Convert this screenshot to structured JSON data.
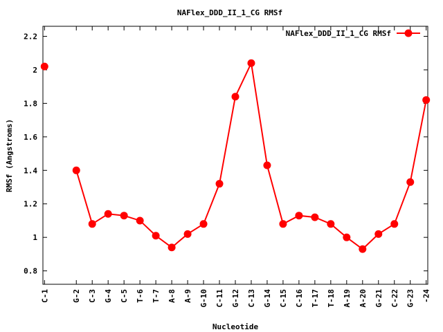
{
  "chart_data": {
    "type": "line",
    "title": "NAFlex_DDD_II_1_CG RMSf",
    "xlabel": "Nucleotide",
    "ylabel": "RMSf (Angstroms)",
    "ylim": [
      0.72,
      2.26
    ],
    "yticks": [
      0.8,
      1,
      1.2,
      1.4,
      1.6,
      1.8,
      2,
      2.2
    ],
    "ytick_labels": [
      "0.8",
      "1",
      "1.2",
      "1.4",
      "1.6",
      "1.8",
      "2",
      "2.2"
    ],
    "xlim": [
      0.9,
      24.1
    ],
    "grid": false,
    "legend_position": "top-right",
    "categories": [
      "C-1",
      "G-2",
      "C-3",
      "G-4",
      "C-5",
      "T-6",
      "T-7",
      "A-8",
      "A-9",
      "G-10",
      "C-11",
      "G-12",
      "C-13",
      "G-14",
      "C-15",
      "C-16",
      "T-17",
      "T-18",
      "A-19",
      "A-20",
      "G-21",
      "C-22",
      "G-23",
      "-24"
    ],
    "x": [
      1,
      3,
      4,
      5,
      6,
      7,
      8,
      9,
      10,
      11,
      12,
      13,
      14,
      15,
      16,
      17,
      18,
      19,
      20,
      21,
      22,
      23,
      24,
      25
    ],
    "series": [
      {
        "name": "NAFlex_DDD_II_1_CG RMSf",
        "color": "#ff0000",
        "segments": [
          [
            [
              1,
              2.02
            ]
          ],
          [
            [
              3,
              1.4
            ],
            [
              4,
              1.08
            ],
            [
              5,
              1.14
            ],
            [
              6,
              1.13
            ],
            [
              7,
              1.1
            ],
            [
              8,
              1.01
            ],
            [
              9,
              0.94
            ],
            [
              10,
              1.02
            ],
            [
              11,
              1.08
            ],
            [
              12,
              1.32
            ],
            [
              13,
              1.84
            ],
            [
              14,
              2.04
            ],
            [
              15,
              1.43
            ],
            [
              16,
              1.08
            ],
            [
              17,
              1.13
            ],
            [
              18,
              1.12
            ],
            [
              19,
              1.08
            ],
            [
              20,
              1.0
            ],
            [
              21,
              0.93
            ],
            [
              22,
              1.02
            ],
            [
              23,
              1.08
            ],
            [
              24,
              1.33
            ],
            [
              25,
              1.82
            ]
          ]
        ]
      }
    ]
  }
}
